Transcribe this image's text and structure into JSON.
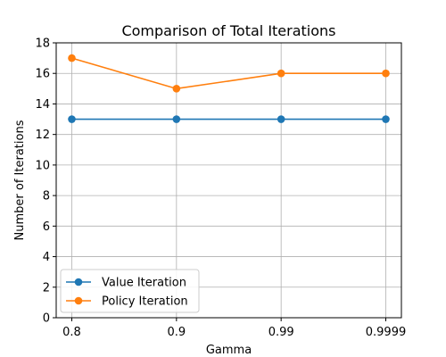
{
  "chart_data": {
    "type": "line",
    "title": "Comparison of Total Iterations",
    "xlabel": "Gamma",
    "ylabel": "Number of Iterations",
    "categories": [
      "0.8",
      "0.9",
      "0.99",
      "0.9999"
    ],
    "yticks": [
      "0",
      "2",
      "4",
      "6",
      "8",
      "10",
      "12",
      "14",
      "16",
      "18"
    ],
    "ylim": [
      0,
      18
    ],
    "grid": true,
    "legend_position": "lower-left",
    "series": [
      {
        "name": "Value Iteration",
        "values": [
          13,
          13,
          13,
          13
        ],
        "color": "#1f77b4",
        "marker": "circle"
      },
      {
        "name": "Policy Iteration",
        "values": [
          17,
          15,
          16,
          16
        ],
        "color": "#ff7f0e",
        "marker": "circle"
      }
    ]
  }
}
